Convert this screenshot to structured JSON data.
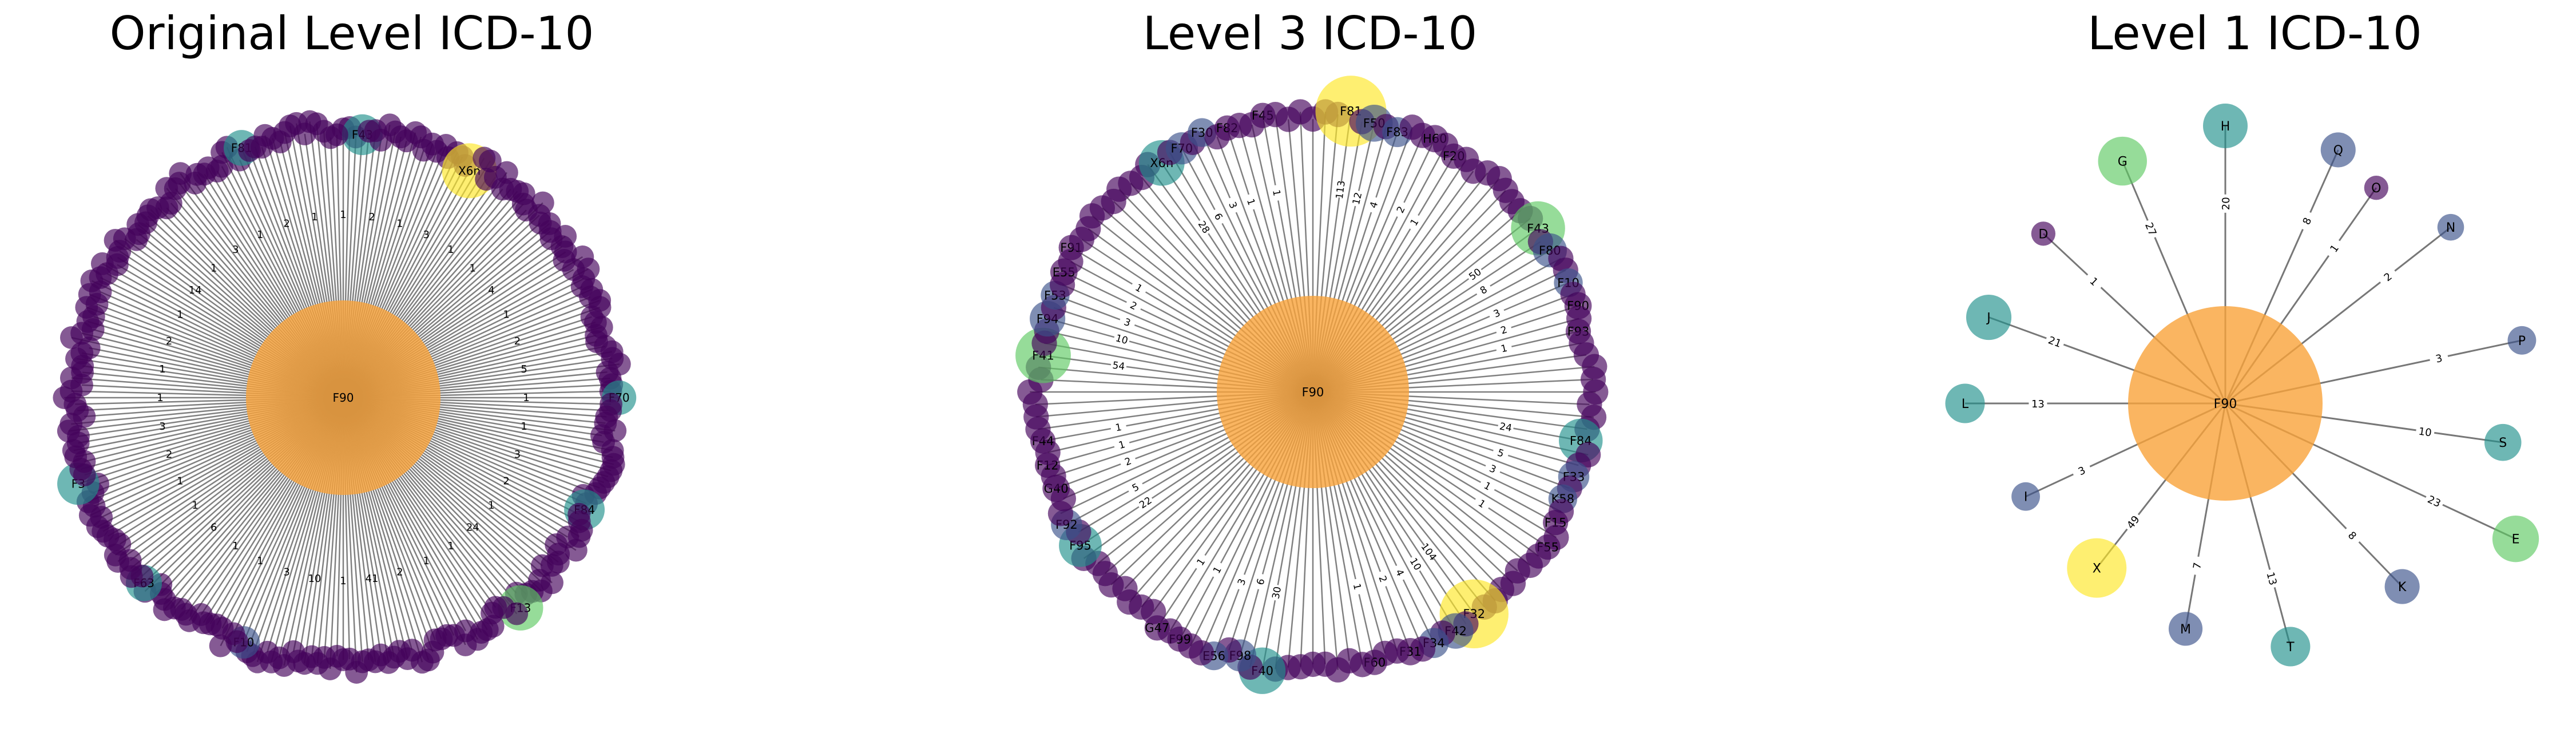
{
  "panels": [
    {
      "title": "Original Level ICD-10",
      "center_label": "F90",
      "nodes": [
        {
          "label": "X6n",
          "weight": 113
        },
        {
          "label": "F13",
          "weight": 60
        },
        {
          "label": "F3",
          "weight": 46
        },
        {
          "label": "F43",
          "weight": 41
        },
        {
          "label": "F84",
          "weight": 40
        },
        {
          "label": "F63",
          "weight": 25
        },
        {
          "label": "F81",
          "weight": 24
        },
        {
          "label": "F70",
          "weight": 20
        },
        {
          "label": "F10",
          "weight": 15
        }
      ],
      "edge_labels": [
        "1",
        "2",
        "1",
        "3",
        "1",
        "1",
        "4",
        "1",
        "2",
        "5",
        "1",
        "1",
        "3",
        "2",
        "1",
        "24",
        "1",
        "1",
        "2",
        "41",
        "1",
        "10",
        "3",
        "1",
        "1",
        "6",
        "1",
        "1",
        "2",
        "3",
        "1",
        "1",
        "2",
        "1",
        "14",
        "1",
        "3",
        "1",
        "2",
        "1"
      ]
    },
    {
      "title": "Level 3 ICD-10",
      "center_label": "F90",
      "nodes": [
        {
          "label": "F81",
          "weight": 113
        },
        {
          "label": "F32",
          "weight": 104
        },
        {
          "label": "F41",
          "weight": 54
        },
        {
          "label": "F43",
          "weight": 50
        },
        {
          "label": "F40",
          "weight": 30
        },
        {
          "label": "X6n",
          "weight": 28
        },
        {
          "label": "F84",
          "weight": 24
        },
        {
          "label": "F95",
          "weight": 22
        },
        {
          "label": "F50",
          "weight": 12
        },
        {
          "label": "F42",
          "weight": 10
        },
        {
          "label": "F94",
          "weight": 10
        },
        {
          "label": "F80",
          "weight": 8
        },
        {
          "label": "F98",
          "weight": 6
        },
        {
          "label": "F70",
          "weight": 6
        },
        {
          "label": "F33",
          "weight": 5
        },
        {
          "label": "F92",
          "weight": 5
        },
        {
          "label": "F83",
          "weight": 4
        },
        {
          "label": "F34",
          "weight": 4
        },
        {
          "label": "F53",
          "weight": 3
        },
        {
          "label": "F10",
          "weight": 3
        },
        {
          "label": "E56",
          "weight": 3
        },
        {
          "label": "F30",
          "weight": 3
        },
        {
          "label": "K58",
          "weight": 3
        },
        {
          "label": "G40",
          "weight": 2
        },
        {
          "label": "H60",
          "weight": 2
        },
        {
          "label": "F31",
          "weight": 2
        },
        {
          "label": "E55",
          "weight": 2
        },
        {
          "label": "F90",
          "weight": 2
        },
        {
          "label": "F99",
          "weight": 1
        },
        {
          "label": "F82",
          "weight": 1
        },
        {
          "label": "F15",
          "weight": 1
        },
        {
          "label": "F12",
          "weight": 1
        },
        {
          "label": "F20",
          "weight": 1
        },
        {
          "label": "F60",
          "weight": 1
        },
        {
          "label": "F91",
          "weight": 1
        },
        {
          "label": "F93",
          "weight": 1
        },
        {
          "label": "G47",
          "weight": 1
        },
        {
          "label": "F45",
          "weight": 1
        },
        {
          "label": "F55",
          "weight": 1
        },
        {
          "label": "F44",
          "weight": 1
        }
      ]
    },
    {
      "title": "Level 1 ICD-10",
      "center_label": "F90",
      "nodes": [
        {
          "label": "H",
          "weight": 20
        },
        {
          "label": "Q",
          "weight": 8
        },
        {
          "label": "O",
          "weight": 1
        },
        {
          "label": "N",
          "weight": 2
        },
        {
          "label": "P",
          "weight": 3
        },
        {
          "label": "S",
          "weight": 10
        },
        {
          "label": "E",
          "weight": 23
        },
        {
          "label": "K",
          "weight": 8
        },
        {
          "label": "T",
          "weight": 13
        },
        {
          "label": "M",
          "weight": 7
        },
        {
          "label": "X",
          "weight": 49
        },
        {
          "label": "I",
          "weight": 3
        },
        {
          "label": "L",
          "weight": 13
        },
        {
          "label": "J",
          "weight": 21
        },
        {
          "label": "D",
          "weight": 1
        },
        {
          "label": "G",
          "weight": 27
        }
      ]
    }
  ],
  "colors": {
    "center": "#f9a33a",
    "edge": "#555555",
    "scale": [
      "#44015a",
      "#3b528b",
      "#21918c",
      "#5ec962",
      "#fde725"
    ]
  }
}
